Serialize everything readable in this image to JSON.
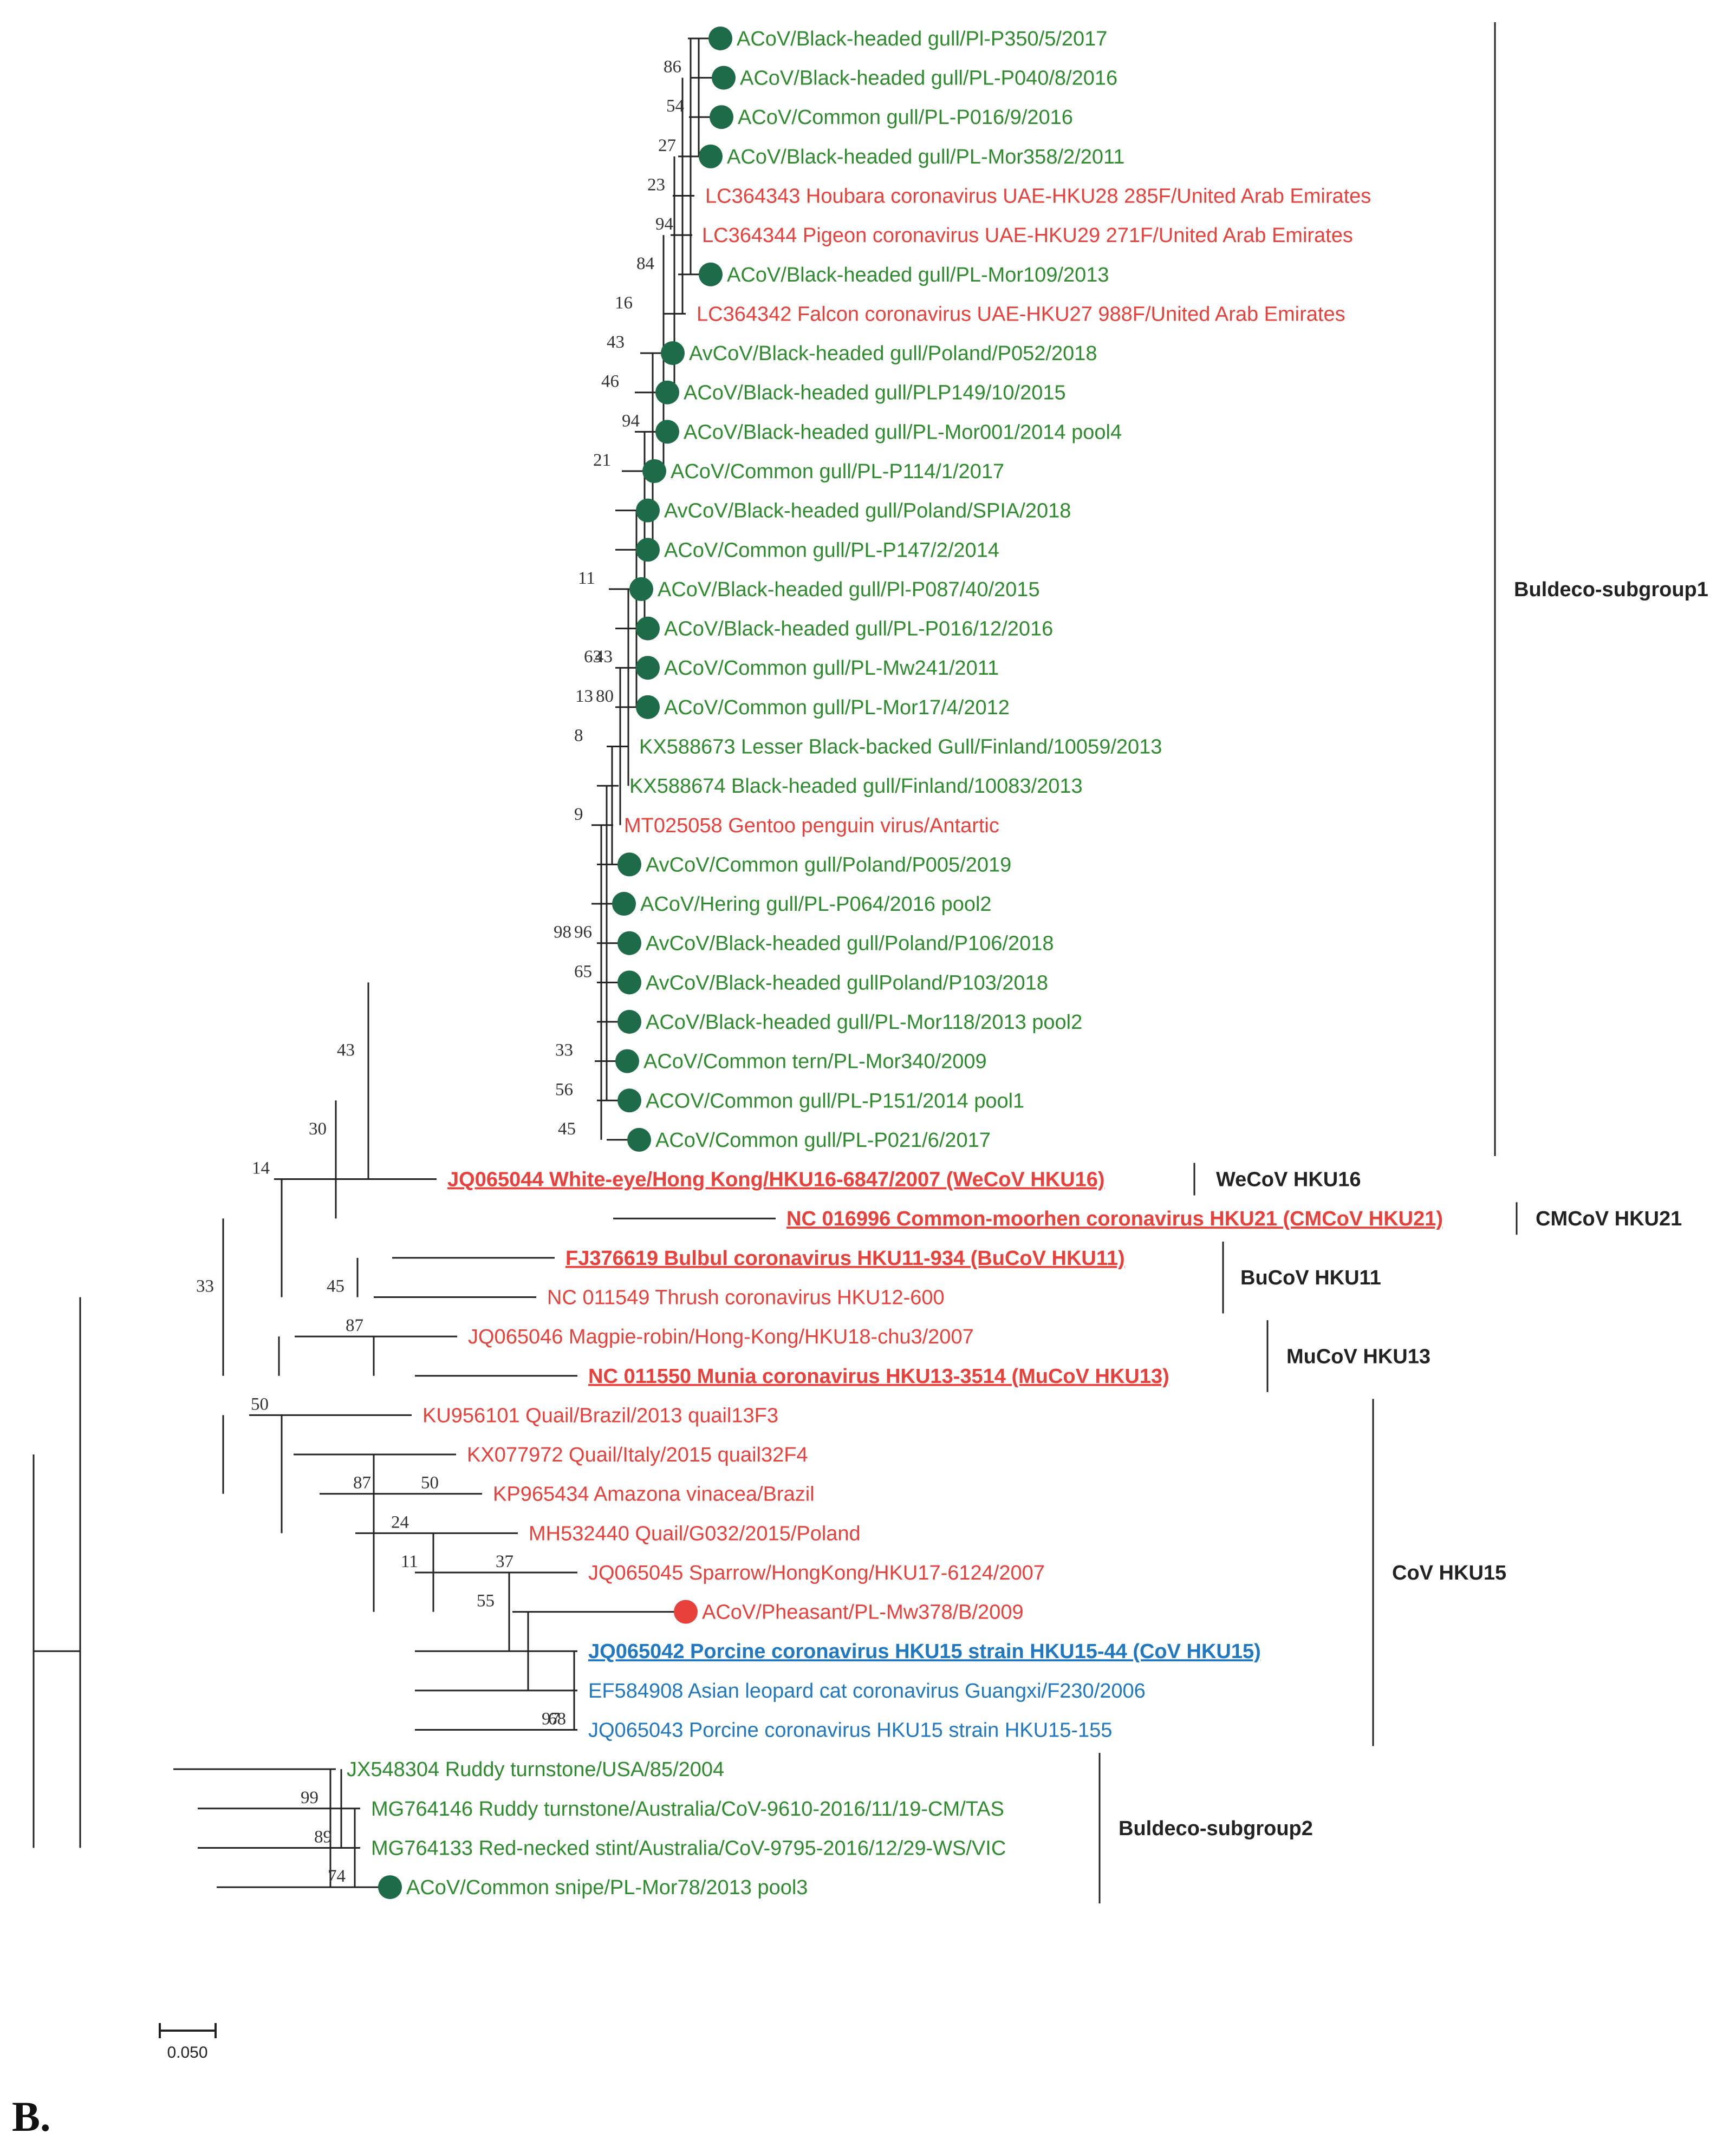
{
  "colors": {
    "green": "#2e8b2e",
    "red": "#e8403a",
    "blue": "#1f78c1",
    "dot_green": "#1e6b4a",
    "dot_red": "#e8403a",
    "line": "#222222"
  },
  "taxa": [
    {
      "label": "ACoV/Black-headed gull/Pl-P350/5/2017",
      "color": "green",
      "dot": "green"
    },
    {
      "label": "ACoV/Black-headed gull/PL-P040/8/2016",
      "color": "green",
      "dot": "green"
    },
    {
      "label": "ACoV/Common gull/PL-P016/9/2016",
      "color": "green",
      "dot": "green"
    },
    {
      "label": "ACoV/Black-headed gull/PL-Mor358/2/2011",
      "color": "green",
      "dot": "green"
    },
    {
      "label": "LC364343 Houbara coronavirus UAE-HKU28 285F/United Arab Emirates",
      "color": "red",
      "dot": null
    },
    {
      "label": "LC364344 Pigeon coronavirus UAE-HKU29 271F/United Arab Emirates",
      "color": "red",
      "dot": null
    },
    {
      "label": "ACoV/Black-headed gull/PL-Mor109/2013",
      "color": "green",
      "dot": "green"
    },
    {
      "label": "LC364342 Falcon coronavirus UAE-HKU27 988F/United Arab Emirates",
      "color": "red",
      "dot": null
    },
    {
      "label": "AvCoV/Black-headed gull/Poland/P052/2018",
      "color": "green",
      "dot": "green"
    },
    {
      "label": "ACoV/Black-headed gull/PLP149/10/2015",
      "color": "green",
      "dot": "green"
    },
    {
      "label": "ACoV/Black-headed gull/PL-Mor001/2014 pool4",
      "color": "green",
      "dot": "green"
    },
    {
      "label": "ACoV/Common gull/PL-P114/1/2017",
      "color": "green",
      "dot": "green"
    },
    {
      "label": "AvCoV/Black-headed gull/Poland/SPIA/2018",
      "color": "green",
      "dot": "green"
    },
    {
      "label": "ACoV/Common gull/PL-P147/2/2014",
      "color": "green",
      "dot": "green"
    },
    {
      "label": "ACoV/Black-headed gull/Pl-P087/40/2015",
      "color": "green",
      "dot": "green"
    },
    {
      "label": "ACoV/Black-headed gull/PL-P016/12/2016",
      "color": "green",
      "dot": "green"
    },
    {
      "label": "ACoV/Common gull/PL-Mw241/2011",
      "color": "green",
      "dot": "green"
    },
    {
      "label": "ACoV/Common gull/PL-Mor17/4/2012",
      "color": "green",
      "dot": "green"
    },
    {
      "label": "KX588673 Lesser Black-backed Gull/Finland/10059/2013",
      "color": "green",
      "dot": null
    },
    {
      "label": "KX588674 Black-headed gull/Finland/10083/2013",
      "color": "green",
      "dot": null
    },
    {
      "label": "MT025058 Gentoo penguin virus/Antartic",
      "color": "red",
      "dot": null
    },
    {
      "label": "AvCoV/Common gull/Poland/P005/2019",
      "color": "green",
      "dot": "green"
    },
    {
      "label": "ACoV/Hering gull/PL-P064/2016 pool2",
      "color": "green",
      "dot": "green"
    },
    {
      "label": "AvCoV/Black-headed gull/Poland/P106/2018",
      "color": "green",
      "dot": "green"
    },
    {
      "label": "AvCoV/Black-headed gullPoland/P103/2018",
      "color": "green",
      "dot": "green"
    },
    {
      "label": "ACoV/Black-headed gull/PL-Mor118/2013 pool2",
      "color": "green",
      "dot": "green"
    },
    {
      "label": "ACoV/Common tern/PL-Mor340/2009",
      "color": "green",
      "dot": "green"
    },
    {
      "label": "ACOV/Common gull/PL-P151/2014 pool1",
      "color": "green",
      "dot": "green"
    },
    {
      "label": "ACoV/Common gull/PL-P021/6/2017",
      "color": "green",
      "dot": "green"
    },
    {
      "label": "JQ065044 White-eye/Hong Kong/HKU16-6847/2007 (WeCoV HKU16)",
      "color": "red",
      "dot": null,
      "bold": true
    },
    {
      "label": "NC 016996 Common-moorhen coronavirus HKU21 (CMCoV HKU21)",
      "color": "red",
      "dot": null,
      "bold": true
    },
    {
      "label": "FJ376619 Bulbul coronavirus HKU11-934 (BuCoV HKU11)",
      "color": "red",
      "dot": null,
      "bold": true
    },
    {
      "label": "NC 011549 Thrush coronavirus HKU12-600",
      "color": "red",
      "dot": null
    },
    {
      "label": "JQ065046 Magpie-robin/Hong-Kong/HKU18-chu3/2007",
      "color": "red",
      "dot": null
    },
    {
      "label": "NC 011550 Munia coronavirus HKU13-3514 (MuCoV HKU13)",
      "color": "red",
      "dot": null,
      "bold": true
    },
    {
      "label": "KU956101 Quail/Brazil/2013 quail13F3",
      "color": "red",
      "dot": null
    },
    {
      "label": "KX077972 Quail/Italy/2015 quail32F4",
      "color": "red",
      "dot": null
    },
    {
      "label": "KP965434 Amazona vinacea/Brazil",
      "color": "red",
      "dot": null
    },
    {
      "label": "MH532440 Quail/G032/2015/Poland",
      "color": "red",
      "dot": null
    },
    {
      "label": "JQ065045 Sparrow/HongKong/HKU17-6124/2007",
      "color": "red",
      "dot": null
    },
    {
      "label": "ACoV/Pheasant/PL-Mw378/B/2009",
      "color": "red",
      "dot": "red"
    },
    {
      "label": "JQ065042 Porcine coronavirus HKU15 strain HKU15-44 (CoV HKU15)",
      "color": "blue",
      "dot": null,
      "bold": true
    },
    {
      "label": "EF584908 Asian leopard cat coronavirus Guangxi/F230/2006",
      "color": "blue",
      "dot": null
    },
    {
      "label": "JQ065043 Porcine coronavirus HKU15 strain HKU15-155",
      "color": "blue",
      "dot": null
    },
    {
      "label": "JX548304 Ruddy turnstone/USA/85/2004",
      "color": "green",
      "dot": null
    },
    {
      "label": "MG764146 Ruddy turnstone/Australia/CoV-9610-2016/11/19-CM/TAS",
      "color": "green",
      "dot": null
    },
    {
      "label": "MG764133 Red-necked stint/Australia/CoV-9795-2016/12/29-WS/VIC",
      "color": "green",
      "dot": null
    },
    {
      "label": "ACoV/Common snipe/PL-Mor78/2013 pool3",
      "color": "green",
      "dot": "green"
    }
  ],
  "bootstraps": [
    "86",
    "54",
    "27",
    "23",
    "94",
    "84",
    "16",
    "43",
    "46",
    "94",
    "21",
    "11",
    "63",
    "43",
    "13",
    "80",
    "8",
    "9",
    "98",
    "96",
    "65",
    "33",
    "56",
    "45",
    "43",
    "30",
    "14",
    "45",
    "33",
    "87",
    "50",
    "87",
    "50",
    "24",
    "11",
    "37",
    "55",
    "97",
    "68",
    "99",
    "89",
    "74"
  ],
  "groups": [
    {
      "label": "Buldeco-subgroup1"
    },
    {
      "label": "WeCoV HKU16"
    },
    {
      "label": "CMCoV HKU21"
    },
    {
      "label": "BuCoV HKU11"
    },
    {
      "label": "MuCoV HKU13"
    },
    {
      "label": "CoV HKU15"
    },
    {
      "label": "Buldeco-subgroup2"
    }
  ],
  "scale_bar": {
    "label": "0.050"
  },
  "panel_label": "B."
}
